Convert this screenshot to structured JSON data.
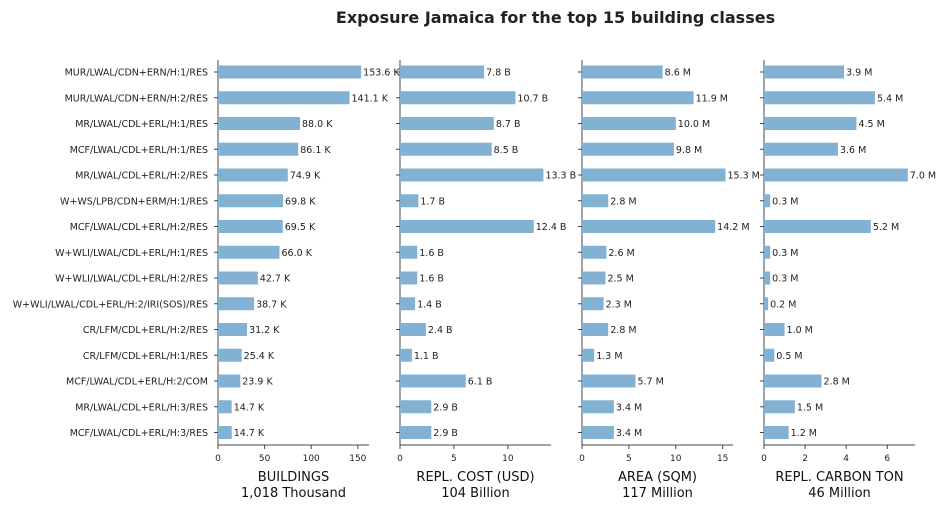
{
  "chart_data": {
    "type": "bar",
    "orientation": "horizontal",
    "title": "Exposure Jamaica for the top 15 building classes",
    "categories": [
      "MUR/LWAL/CDN+ERN/H:1/RES",
      "MUR/LWAL/CDN+ERN/H:2/RES",
      "MR/LWAL/CDL+ERL/H:1/RES",
      "MCF/LWAL/CDL+ERL/H:1/RES",
      "MR/LWAL/CDL+ERL/H:2/RES",
      "W+WS/LPB/CDN+ERM/H:1/RES",
      "MCF/LWAL/CDL+ERL/H:2/RES",
      "W+WLI/LWAL/CDL+ERL/H:1/RES",
      "W+WLI/LWAL/CDL+ERL/H:2/RES",
      "W+WLI/LWAL/CDL+ERL/H:2/IRI(SOS)/RES",
      "CR/LFM/CDL+ERL/H:2/RES",
      "CR/LFM/CDL+ERL/H:1/RES",
      "MCF/LWAL/CDL+ERL/H:2/COM",
      "MR/LWAL/CDL+ERL/H:3/RES",
      "MCF/LWAL/CDL+ERL/H:3/RES"
    ],
    "bar_color": "#82b1d3",
    "panels": [
      {
        "xlabel": "BUILDINGS",
        "total": "1,018 Thousand",
        "unit_suffix": "K",
        "xlim": [
          0,
          162
        ],
        "xticks": [
          0,
          50,
          100,
          150
        ],
        "values": [
          153.6,
          141.1,
          88.0,
          86.1,
          74.9,
          69.8,
          69.5,
          66.0,
          42.7,
          38.7,
          31.2,
          25.4,
          23.9,
          14.7,
          14.7
        ]
      },
      {
        "xlabel": "REPL. COST (USD)",
        "total": "104 Billion",
        "unit_suffix": "B",
        "xlim": [
          0,
          14.0
        ],
        "xticks": [
          0,
          5,
          10
        ],
        "values": [
          7.8,
          10.7,
          8.7,
          8.5,
          13.3,
          1.7,
          12.4,
          1.6,
          1.6,
          1.4,
          2.4,
          1.1,
          6.1,
          2.9,
          2.9
        ]
      },
      {
        "xlabel": "AREA (SQM)",
        "total": "117 Million",
        "unit_suffix": "M",
        "xlim": [
          0,
          16.1
        ],
        "xticks": [
          0,
          5,
          10,
          15
        ],
        "values": [
          8.6,
          11.9,
          10.0,
          9.8,
          15.3,
          2.8,
          14.2,
          2.6,
          2.5,
          2.3,
          2.8,
          1.3,
          5.7,
          3.4,
          3.4
        ]
      },
      {
        "xlabel": "REPL. CARBON TON",
        "total": "46 Million",
        "unit_suffix": "M",
        "xlim": [
          0,
          7.35
        ],
        "xticks": [
          0,
          2,
          4,
          6
        ],
        "values": [
          3.9,
          5.4,
          4.5,
          3.6,
          7.0,
          0.3,
          5.2,
          0.3,
          0.3,
          0.2,
          1.0,
          0.5,
          2.8,
          1.5,
          1.2
        ]
      }
    ]
  }
}
